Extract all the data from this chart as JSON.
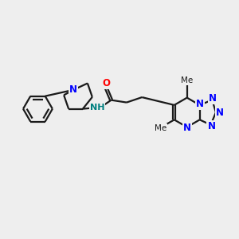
{
  "background_color": "#eeeeee",
  "bond_color": "#1a1a1a",
  "n_color": "#0000ff",
  "o_color": "#ff0000",
  "nh_color": "#008080",
  "line_width": 1.6,
  "figsize": [
    3.0,
    3.0
  ],
  "dpi": 100,
  "xlim": [
    0,
    10
  ],
  "ylim": [
    0,
    10
  ]
}
